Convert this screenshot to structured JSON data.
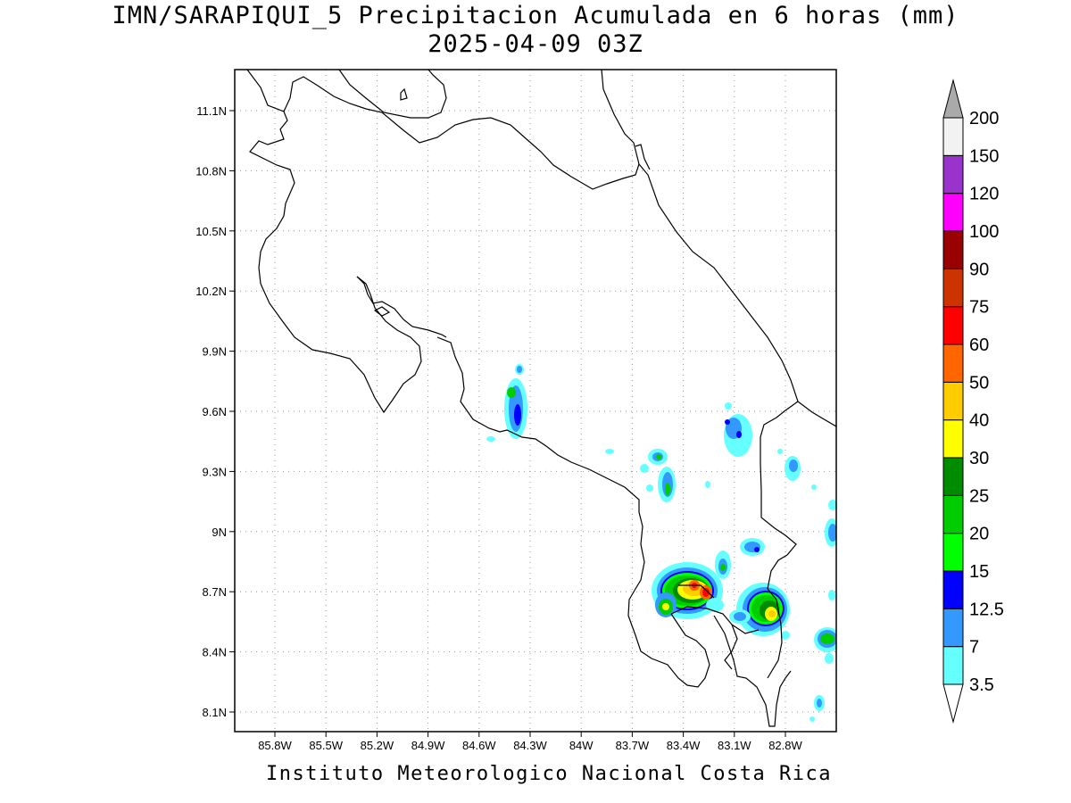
{
  "title": {
    "line1": "IMN/SARAPIQUI_5 Precipitacion Acumulada en 6 horas (mm)",
    "line2": "2025-04-09 03Z"
  },
  "footer": "Instituto Meteorologico Nacional Costa Rica",
  "map": {
    "lat_ticks": [
      "11.1N",
      "10.8N",
      "10.5N",
      "10.2N",
      "9.9N",
      "9.6N",
      "9.3N",
      "9N",
      "8.7N",
      "8.4N",
      "8.1N"
    ],
    "lon_ticks": [
      "85.8W",
      "85.5W",
      "85.2W",
      "84.9W",
      "84.6W",
      "84.3W",
      "84W",
      "83.7W",
      "83.4W",
      "83.1W",
      "82.8W"
    ],
    "grid": true
  },
  "colorbar": {
    "labels": [
      "3.5",
      "7",
      "12.5",
      "15",
      "20",
      "25",
      "30",
      "40",
      "50",
      "60",
      "75",
      "90",
      "100",
      "120",
      "150",
      "200"
    ],
    "colors": [
      "#66ffff",
      "#3399ff",
      "#0000ff",
      "#00ff00",
      "#00cc00",
      "#008c00",
      "#ffff00",
      "#ffcc00",
      "#ff6600",
      "#ff0000",
      "#cc3300",
      "#990000",
      "#ff00ff",
      "#9933cc",
      "#f2f2f2"
    ],
    "over_color": "#aaaaaa"
  }
}
